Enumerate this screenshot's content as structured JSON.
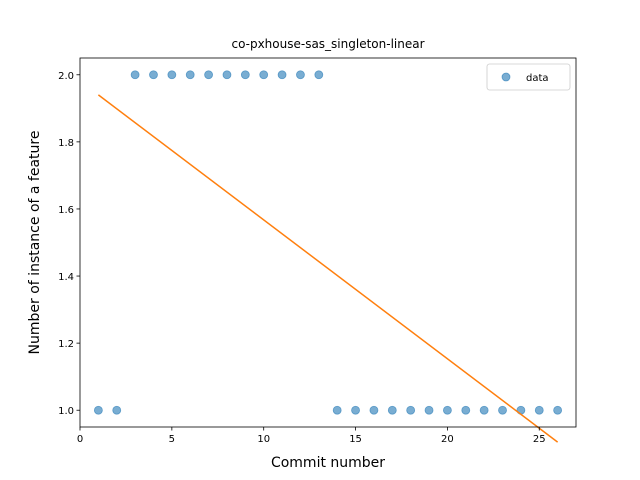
{
  "chart_data": {
    "type": "scatter",
    "title": "co-pxhouse-sas_singleton-linear",
    "xlabel": "Commit number",
    "ylabel": "Number of instance of a feature",
    "xlim": [
      0.0,
      27.0
    ],
    "ylim": [
      0.95,
      2.05
    ],
    "xticks": [
      0,
      5,
      10,
      15,
      20,
      25
    ],
    "xtick_labels": [
      "0",
      "5",
      "10",
      "15",
      "20",
      "25"
    ],
    "yticks": [
      1.0,
      1.2,
      1.4,
      1.6,
      1.8,
      2.0
    ],
    "ytick_labels": [
      "1.0",
      "1.2",
      "1.4",
      "1.6",
      "1.8",
      "2.0"
    ],
    "grid": false,
    "legend_position": "top-right",
    "series": [
      {
        "name": "data",
        "kind": "scatter",
        "color": "#1f77b4",
        "x": [
          1,
          2,
          3,
          4,
          5,
          6,
          7,
          8,
          9,
          10,
          11,
          12,
          13,
          14,
          15,
          16,
          17,
          18,
          19,
          20,
          21,
          22,
          23,
          24,
          25,
          26
        ],
        "y": [
          1,
          1,
          2,
          2,
          2,
          2,
          2,
          2,
          2,
          2,
          2,
          2,
          2,
          1,
          1,
          1,
          1,
          1,
          1,
          1,
          1,
          1,
          1,
          1,
          1,
          1
        ]
      },
      {
        "kind": "line",
        "color": "#ff7f0e",
        "x": [
          1,
          26
        ],
        "y": [
          1.94,
          0.905
        ]
      }
    ]
  }
}
